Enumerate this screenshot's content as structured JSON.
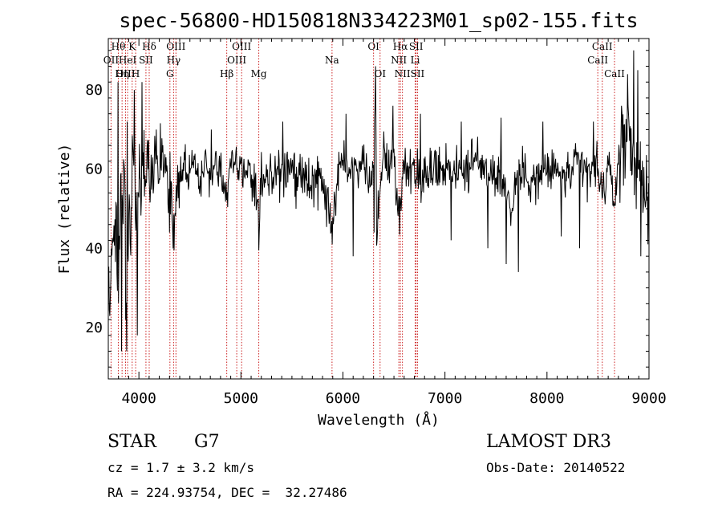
{
  "chart_data": {
    "type": "line",
    "title": "spec-56800-HD150818N334223M01_sp02-155.fits",
    "xlabel": "Wavelength (Å)",
    "ylabel": "Flux (relative)",
    "xlim": [
      3700,
      9000
    ],
    "ylim": [
      7,
      93
    ],
    "xticks": [
      4000,
      5000,
      6000,
      7000,
      8000,
      9000
    ],
    "yticks": [
      20,
      40,
      60,
      80
    ],
    "grid": false,
    "series": [
      {
        "name": "spectrum",
        "anchors": [
          [
            3700,
            32
          ],
          [
            3720,
            27
          ],
          [
            3740,
            48
          ],
          [
            3760,
            40
          ],
          [
            3780,
            45
          ],
          [
            3800,
            33
          ],
          [
            3820,
            58
          ],
          [
            3840,
            48
          ],
          [
            3860,
            62
          ],
          [
            3880,
            18
          ],
          [
            3900,
            55
          ],
          [
            3920,
            46
          ],
          [
            3940,
            65
          ],
          [
            3960,
            55
          ],
          [
            3980,
            42
          ],
          [
            4000,
            60
          ],
          [
            4020,
            55
          ],
          [
            4040,
            66
          ],
          [
            4060,
            56
          ],
          [
            4080,
            64
          ],
          [
            4100,
            58
          ],
          [
            4150,
            62
          ],
          [
            4200,
            60
          ],
          [
            4250,
            64
          ],
          [
            4300,
            56
          ],
          [
            4340,
            46
          ],
          [
            4380,
            58
          ],
          [
            4450,
            62
          ],
          [
            4500,
            59
          ],
          [
            4550,
            61
          ],
          [
            4600,
            57
          ],
          [
            4650,
            61
          ],
          [
            4700,
            58
          ],
          [
            4750,
            61
          ],
          [
            4800,
            60
          ],
          [
            4861,
            52
          ],
          [
            4900,
            62
          ],
          [
            5000,
            60
          ],
          [
            5100,
            58
          ],
          [
            5150,
            55
          ],
          [
            5175,
            45
          ],
          [
            5200,
            57
          ],
          [
            5300,
            58
          ],
          [
            5400,
            60
          ],
          [
            5500,
            58
          ],
          [
            5600,
            57
          ],
          [
            5700,
            56
          ],
          [
            5800,
            57
          ],
          [
            5893,
            44
          ],
          [
            5950,
            60
          ],
          [
            6000,
            61
          ],
          [
            6100,
            60
          ],
          [
            6200,
            62
          ],
          [
            6280,
            55
          ],
          [
            6300,
            60
          ],
          [
            6320,
            85
          ],
          [
            6330,
            40
          ],
          [
            6360,
            58
          ],
          [
            6400,
            63
          ],
          [
            6450,
            61
          ],
          [
            6500,
            64
          ],
          [
            6563,
            48
          ],
          [
            6600,
            62
          ],
          [
            6700,
            60
          ],
          [
            6800,
            58
          ],
          [
            6900,
            60
          ],
          [
            7000,
            61
          ],
          [
            7100,
            60
          ],
          [
            7200,
            60
          ],
          [
            7300,
            62
          ],
          [
            7400,
            60
          ],
          [
            7500,
            59
          ],
          [
            7600,
            56
          ],
          [
            7650,
            48
          ],
          [
            7700,
            58
          ],
          [
            7800,
            59
          ],
          [
            7900,
            57
          ],
          [
            8000,
            60
          ],
          [
            8100,
            59
          ],
          [
            8200,
            58
          ],
          [
            8300,
            61
          ],
          [
            8400,
            59
          ],
          [
            8500,
            60
          ],
          [
            8542,
            54
          ],
          [
            8600,
            60
          ],
          [
            8662,
            52
          ],
          [
            8700,
            62
          ],
          [
            8750,
            66
          ],
          [
            8800,
            72
          ],
          [
            8850,
            58
          ],
          [
            8900,
            64
          ],
          [
            8950,
            56
          ],
          [
            9000,
            47
          ]
        ],
        "spikes": [
          [
            3795,
            82
          ],
          [
            3830,
            14
          ],
          [
            3870,
            22
          ],
          [
            3885,
            72
          ],
          [
            3955,
            80
          ],
          [
            3985,
            18
          ],
          [
            4028,
            82
          ],
          [
            4172,
            70
          ],
          [
            4300,
            44
          ],
          [
            4712,
            70
          ],
          [
            5178,
            44
          ],
          [
            5410,
            72
          ],
          [
            5893,
            41
          ],
          [
            6030,
            74
          ],
          [
            6100,
            38
          ],
          [
            6290,
            62
          ],
          [
            6307,
            44
          ],
          [
            6320,
            86
          ],
          [
            6490,
            76
          ],
          [
            6760,
            74
          ],
          [
            7060,
            42
          ],
          [
            7160,
            72
          ],
          [
            7420,
            40
          ],
          [
            7550,
            73
          ],
          [
            7600,
            36
          ],
          [
            7720,
            34
          ],
          [
            7960,
            72
          ],
          [
            8140,
            43
          ],
          [
            8320,
            40
          ],
          [
            8455,
            72
          ],
          [
            8730,
            76
          ],
          [
            8790,
            84
          ],
          [
            8850,
            90
          ],
          [
            8890,
            85
          ],
          [
            8920,
            38
          ],
          [
            8990,
            41
          ]
        ]
      }
    ],
    "lines": [
      {
        "label": "Hθ",
        "wavelength": 3798,
        "row": 0
      },
      {
        "label": "OII",
        "wavelength": 3727,
        "row": 1
      },
      {
        "label": "OIII",
        "wavelength": 3869,
        "row": 2
      },
      {
        "label": "Hη",
        "wavelength": 3835,
        "row": 2
      },
      {
        "label": "HeI",
        "wavelength": 3889,
        "row": 1
      },
      {
        "label": "K",
        "wavelength": 3934,
        "row": 0
      },
      {
        "label": "H",
        "wavelength": 3968,
        "row": 2
      },
      {
        "label": "SII",
        "wavelength": 4069,
        "row": 1
      },
      {
        "label": "Hδ",
        "wavelength": 4101,
        "row": 0
      },
      {
        "label": "OIII",
        "wavelength": 4363,
        "row": 0
      },
      {
        "label": "Hγ",
        "wavelength": 4340,
        "row": 1
      },
      {
        "label": "G",
        "wavelength": 4304,
        "row": 2
      },
      {
        "label": "Hβ",
        "wavelength": 4861,
        "row": 2
      },
      {
        "label": "OIII",
        "wavelength": 5007,
        "row": 0
      },
      {
        "label": "OIII",
        "wavelength": 4959,
        "row": 1
      },
      {
        "label": "Mg",
        "wavelength": 5175,
        "row": 2
      },
      {
        "label": "Na",
        "wavelength": 5893,
        "row": 1
      },
      {
        "label": "OI",
        "wavelength": 6300,
        "row": 0
      },
      {
        "label": "OI",
        "wavelength": 6364,
        "row": 2
      },
      {
        "label": "Hα",
        "wavelength": 6563,
        "row": 0
      },
      {
        "label": "NII",
        "wavelength": 6548,
        "row": 1
      },
      {
        "label": "NII",
        "wavelength": 6583,
        "row": 2
      },
      {
        "label": "SII",
        "wavelength": 6717,
        "row": 0
      },
      {
        "label": "Li",
        "wavelength": 6708,
        "row": 1
      },
      {
        "label": "SII",
        "wavelength": 6731,
        "row": 2
      },
      {
        "label": "CaII",
        "wavelength": 8542,
        "row": 0
      },
      {
        "label": "CaII",
        "wavelength": 8498,
        "row": 1
      },
      {
        "label": "CaII",
        "wavelength": 8662,
        "row": 2
      }
    ],
    "annotations": {
      "object_class": "STAR",
      "subclass": "G7",
      "redshift": "cz = 1.7 ± 3.2 km/s",
      "coords": "RA = 224.93754, DEC =  32.27486",
      "survey": "LAMOST DR3",
      "obs_date": "Obs-Date: 20140522"
    }
  },
  "colors": {
    "line_marker": "#cc2222",
    "axis": "#000000",
    "spectrum": "#000000"
  }
}
